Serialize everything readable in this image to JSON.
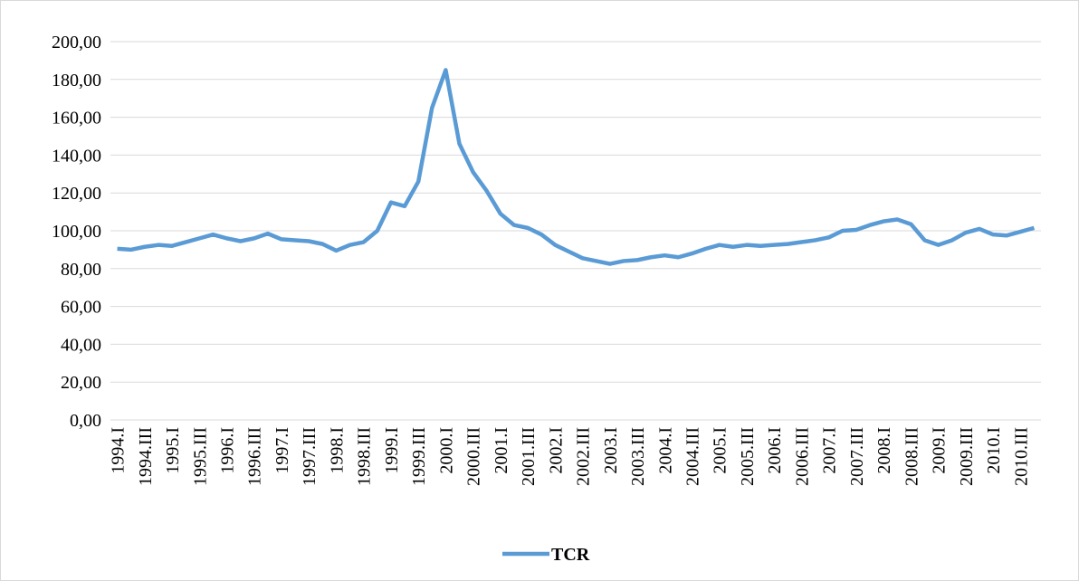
{
  "chart_data": {
    "type": "line",
    "categories": [
      "1994.I",
      null,
      "1994.III",
      null,
      "1995.I",
      null,
      "1995.III",
      null,
      "1996.I",
      null,
      "1996.III",
      null,
      "1997.I",
      null,
      "1997.III",
      null,
      "1998.I",
      null,
      "1998.III",
      null,
      "1999.I",
      null,
      "1999.III",
      null,
      "2000.I",
      null,
      "2000.III",
      null,
      "2001.I",
      null,
      "2001.III",
      null,
      "2002.I",
      null,
      "2002.III",
      null,
      "2003.I",
      null,
      "2003.III",
      null,
      "2004.I",
      null,
      "2004.III",
      null,
      "2005.I",
      null,
      "2005.III",
      null,
      "2006.I",
      null,
      "2006.III",
      null,
      "2007.I",
      null,
      "2007.III",
      null,
      "2008.I",
      null,
      "2008.III",
      null,
      "2009.I",
      null,
      "2009.III",
      null,
      "2010.I",
      null,
      "2010.III",
      null
    ],
    "series": [
      {
        "name": "TCR",
        "color": "#5b9bd5",
        "values": [
          90.5,
          90,
          91.5,
          92.5,
          92,
          94,
          96,
          98,
          96,
          94.5,
          96,
          98.5,
          95.5,
          95,
          94.5,
          93,
          89.5,
          92.5,
          94,
          100,
          115,
          113,
          126,
          165,
          185,
          146,
          131,
          121,
          109,
          103,
          101.5,
          98,
          92.5,
          89,
          85.5,
          84,
          82.5,
          84,
          84.5,
          86,
          87,
          86,
          88,
          90.5,
          92.5,
          91.5,
          92.5,
          92,
          92.5,
          93,
          94,
          95,
          96.5,
          100,
          100.5,
          103,
          105,
          106,
          103.5,
          95,
          92.5,
          95,
          99,
          101,
          98,
          97.5,
          99.5,
          101.5
        ]
      }
    ],
    "ylim": [
      0,
      200
    ],
    "yticks": [
      {
        "value": 0,
        "label": "0,00"
      },
      {
        "value": 20,
        "label": "20,00"
      },
      {
        "value": 40,
        "label": "40,00"
      },
      {
        "value": 60,
        "label": "60,00"
      },
      {
        "value": 80,
        "label": "80,00"
      },
      {
        "value": 100,
        "label": "100,00"
      },
      {
        "value": 120,
        "label": "120,00"
      },
      {
        "value": 140,
        "label": "140,00"
      },
      {
        "value": 160,
        "label": "160,00"
      },
      {
        "value": 180,
        "label": "180,00"
      },
      {
        "value": 200,
        "label": "200,00"
      }
    ],
    "grid": true,
    "legend": "bottom"
  }
}
